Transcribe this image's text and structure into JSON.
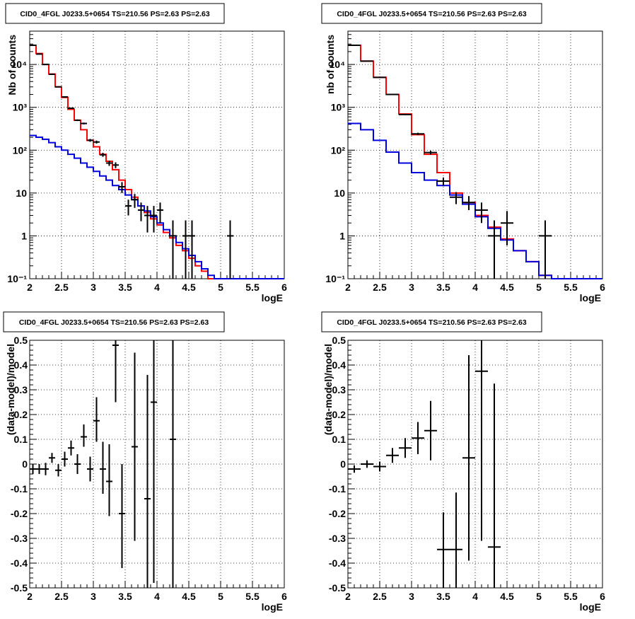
{
  "chart_data": [
    {
      "type": "line",
      "title": "CID0_4FGL J0233.5+0654 TS=210.56 PS=2.63 PS=2.63",
      "xlabel": "logE",
      "ylabel": "Nb of counts",
      "xlim": [
        2,
        6
      ],
      "ylim": [
        0.1,
        60000
      ],
      "log_y": true,
      "grid": true,
      "x_ticks": [
        "2",
        "2.5",
        "3",
        "3.5",
        "4",
        "4.5",
        "5",
        "5.5",
        "6"
      ],
      "y_ticks": [
        "10⁻¹",
        "1",
        "10",
        "10²",
        "10³",
        "10⁴"
      ],
      "bin_edges": [
        2.0,
        2.1,
        2.2,
        2.3,
        2.4,
        2.5,
        2.6,
        2.7,
        2.8,
        2.9,
        3.0,
        3.1,
        3.2,
        3.3,
        3.4,
        3.5,
        3.6,
        3.7,
        3.8,
        3.9,
        4.0,
        4.1,
        4.2,
        4.3,
        4.4,
        4.5,
        4.6,
        4.7,
        4.8,
        4.9,
        5.0,
        5.1,
        5.2,
        5.3,
        5.4,
        5.5,
        5.6,
        5.7,
        5.8,
        5.9,
        6.0
      ],
      "series": [
        {
          "color": "#ff0000",
          "style": "step",
          "values": [
            28000,
            18000,
            10000,
            6000,
            3000,
            1700,
            900,
            500,
            300,
            170,
            120,
            80,
            55,
            35,
            20,
            12,
            8,
            5,
            3.5,
            2.5,
            1.8,
            1.2,
            0.9,
            0.6,
            0.45,
            0.3,
            0.2,
            0.15,
            0.1,
            0.1,
            0.1,
            0.1,
            0.1,
            0.1,
            0.1,
            0.1,
            0.1,
            0.1,
            0.1,
            0.1
          ]
        },
        {
          "color": "#0000dd",
          "style": "step",
          "values": [
            220,
            200,
            180,
            150,
            120,
            100,
            80,
            65,
            50,
            40,
            32,
            25,
            20,
            15,
            12,
            9,
            7,
            5,
            3.8,
            2.8,
            2.0,
            1.4,
            1.0,
            0.7,
            0.5,
            0.35,
            0.25,
            0.17,
            0.12,
            0.1,
            0.1,
            0.1,
            0.1,
            0.1,
            0.1,
            0.1,
            0.1,
            0.1,
            0.1,
            0.1
          ]
        },
        {
          "color": "#000000",
          "style": "errorbar",
          "points": [
            {
              "x": 2.05,
              "y": 28000,
              "xerr": 0.05,
              "lo": 27800,
              "hi": 28200
            },
            {
              "x": 2.15,
              "y": 17500,
              "xerr": 0.05,
              "lo": 17300,
              "hi": 17700
            },
            {
              "x": 2.25,
              "y": 10000,
              "xerr": 0.05,
              "lo": 9900,
              "hi": 10100
            },
            {
              "x": 2.35,
              "y": 5900,
              "xerr": 0.05,
              "lo": 5820,
              "hi": 5980
            },
            {
              "x": 2.45,
              "y": 3000,
              "xerr": 0.05,
              "lo": 2950,
              "hi": 3050
            },
            {
              "x": 2.55,
              "y": 1750,
              "xerr": 0.05,
              "lo": 1710,
              "hi": 1790
            },
            {
              "x": 2.65,
              "y": 950,
              "xerr": 0.05,
              "lo": 920,
              "hi": 980
            },
            {
              "x": 2.75,
              "y": 500,
              "xerr": 0.05,
              "lo": 478,
              "hi": 522
            },
            {
              "x": 2.85,
              "y": 420,
              "xerr": 0.05,
              "lo": 400,
              "hi": 440
            },
            {
              "x": 2.95,
              "y": 170,
              "xerr": 0.05,
              "lo": 157,
              "hi": 183
            },
            {
              "x": 3.05,
              "y": 155,
              "xerr": 0.05,
              "lo": 143,
              "hi": 167
            },
            {
              "x": 3.15,
              "y": 78,
              "xerr": 0.05,
              "lo": 70,
              "hi": 87
            },
            {
              "x": 3.25,
              "y": 50,
              "xerr": 0.05,
              "lo": 43,
              "hi": 57
            },
            {
              "x": 3.35,
              "y": 45,
              "xerr": 0.05,
              "lo": 38,
              "hi": 52
            },
            {
              "x": 3.45,
              "y": 14,
              "xerr": 0.05,
              "lo": 10,
              "hi": 18
            },
            {
              "x": 3.55,
              "y": 5,
              "xerr": 0.05,
              "lo": 3,
              "hi": 7
            },
            {
              "x": 3.65,
              "y": 7,
              "xerr": 0.05,
              "lo": 4.5,
              "hi": 9.5
            },
            {
              "x": 3.75,
              "y": 4,
              "xerr": 0.05,
              "lo": 2.2,
              "hi": 6
            },
            {
              "x": 3.85,
              "y": 3,
              "xerr": 0.05,
              "lo": 1.2,
              "hi": 5
            },
            {
              "x": 3.95,
              "y": 3,
              "xerr": 0.05,
              "lo": 1.2,
              "hi": 5
            },
            {
              "x": 4.05,
              "y": 4,
              "xerr": 0.05,
              "lo": 2,
              "hi": 6
            },
            {
              "x": 4.25,
              "y": 1,
              "xerr": 0.05,
              "lo": 0.1,
              "hi": 2.3
            },
            {
              "x": 4.45,
              "y": 1,
              "xerr": 0.05,
              "lo": 0.1,
              "hi": 2.3
            },
            {
              "x": 4.55,
              "y": 1,
              "xerr": 0.05,
              "lo": 0.1,
              "hi": 2.3
            },
            {
              "x": 5.15,
              "y": 1,
              "xerr": 0.05,
              "lo": 0.1,
              "hi": 2.3
            }
          ]
        }
      ]
    },
    {
      "type": "line",
      "title": "CID0_4FGL J0233.5+0654 TS=210.56 PS=2.63 PS=2.63",
      "xlabel": "logE",
      "ylabel": "nb of counts",
      "xlim": [
        2,
        6
      ],
      "ylim": [
        0.1,
        60000
      ],
      "log_y": true,
      "grid": true,
      "x_ticks": [
        "2",
        "2.5",
        "3",
        "3.5",
        "4",
        "4.5",
        "5",
        "5.5",
        "6"
      ],
      "y_ticks": [
        "10⁻¹",
        "1",
        "10",
        "10²",
        "10³",
        "10⁴"
      ],
      "bin_edges": [
        2.0,
        2.2,
        2.4,
        2.6,
        2.8,
        3.0,
        3.2,
        3.4,
        3.6,
        3.8,
        4.0,
        4.2,
        4.4,
        4.6,
        4.8,
        5.0,
        5.2,
        5.4,
        5.6,
        5.8,
        6.0
      ],
      "series": [
        {
          "color": "#ff0000",
          "style": "step",
          "values": [
            28000,
            12000,
            5000,
            2000,
            700,
            230,
            80,
            30,
            10,
            6,
            3,
            1.6,
            0.85,
            0.45,
            0.25,
            0.12,
            0.1,
            0.1,
            0.1,
            0.1
          ]
        },
        {
          "color": "#0000dd",
          "style": "step",
          "values": [
            420,
            300,
            170,
            90,
            50,
            30,
            20,
            15,
            9,
            5.5,
            2.8,
            1.5,
            0.8,
            0.45,
            0.25,
            0.12,
            0.1,
            0.1,
            0.1,
            0.1
          ]
        },
        {
          "color": "#000000",
          "style": "errorbar",
          "points": [
            {
              "x": 2.1,
              "y": 28000,
              "xerr": 0.1,
              "lo": 27800,
              "hi": 28200
            },
            {
              "x": 2.3,
              "y": 12000,
              "xerr": 0.1,
              "lo": 11850,
              "hi": 12150
            },
            {
              "x": 2.5,
              "y": 5000,
              "xerr": 0.1,
              "lo": 4900,
              "hi": 5100
            },
            {
              "x": 2.7,
              "y": 2000,
              "xerr": 0.1,
              "lo": 1950,
              "hi": 2050
            },
            {
              "x": 2.9,
              "y": 680,
              "xerr": 0.1,
              "lo": 655,
              "hi": 705
            },
            {
              "x": 3.1,
              "y": 240,
              "xerr": 0.1,
              "lo": 225,
              "hi": 255
            },
            {
              "x": 3.3,
              "y": 88,
              "xerr": 0.1,
              "lo": 79,
              "hi": 97
            },
            {
              "x": 3.5,
              "y": 19,
              "xerr": 0.1,
              "lo": 15,
              "hi": 23
            },
            {
              "x": 3.7,
              "y": 8,
              "xerr": 0.1,
              "lo": 5.5,
              "hi": 10.5
            },
            {
              "x": 3.9,
              "y": 6,
              "xerr": 0.1,
              "lo": 4,
              "hi": 8.5
            },
            {
              "x": 4.1,
              "y": 4,
              "xerr": 0.1,
              "lo": 2,
              "hi": 6
            },
            {
              "x": 4.3,
              "y": 1,
              "xerr": 0.1,
              "lo": 0.1,
              "hi": 2.3
            },
            {
              "x": 4.5,
              "y": 2,
              "xerr": 0.1,
              "lo": 0.6,
              "hi": 3.8
            },
            {
              "x": 5.1,
              "y": 1,
              "xerr": 0.1,
              "lo": 0.1,
              "hi": 2.3
            }
          ]
        }
      ]
    },
    {
      "type": "scatter",
      "title": "CID0_4FGL J0233.5+0654 TS=210.56 PS=2.63 PS=2.63",
      "xlabel": "logE",
      "ylabel": "(data-model)/model",
      "xlim": [
        2,
        6
      ],
      "ylim": [
        -0.5,
        0.5
      ],
      "grid": true,
      "x_ticks": [
        "2",
        "2.5",
        "3",
        "3.5",
        "4",
        "4.5",
        "5",
        "5.5",
        "6"
      ],
      "y_ticks": [
        "-0.5",
        "-0.4",
        "-0.3",
        "-0.2",
        "-0.1",
        "0",
        "0.1",
        "0.2",
        "0.3",
        "0.4",
        "0.5"
      ],
      "series": [
        {
          "color": "#000000",
          "style": "errorbar",
          "points": [
            {
              "x": 2.05,
              "y": -0.02,
              "xerr": 0.05,
              "lo": -0.04,
              "hi": 0.0
            },
            {
              "x": 2.15,
              "y": -0.02,
              "xerr": 0.05,
              "lo": -0.04,
              "hi": 0.0
            },
            {
              "x": 2.25,
              "y": -0.02,
              "xerr": 0.05,
              "lo": -0.045,
              "hi": 0.005
            },
            {
              "x": 2.35,
              "y": 0.025,
              "xerr": 0.05,
              "lo": 0.005,
              "hi": 0.045
            },
            {
              "x": 2.45,
              "y": -0.025,
              "xerr": 0.05,
              "lo": -0.05,
              "hi": 0.0
            },
            {
              "x": 2.55,
              "y": 0.02,
              "xerr": 0.05,
              "lo": -0.01,
              "hi": 0.05
            },
            {
              "x": 2.65,
              "y": 0.065,
              "xerr": 0.05,
              "lo": 0.035,
              "hi": 0.095
            },
            {
              "x": 2.75,
              "y": 0.0,
              "xerr": 0.05,
              "lo": -0.04,
              "hi": 0.04
            },
            {
              "x": 2.85,
              "y": 0.11,
              "xerr": 0.05,
              "lo": 0.07,
              "hi": 0.16
            },
            {
              "x": 2.95,
              "y": -0.02,
              "xerr": 0.05,
              "lo": -0.07,
              "hi": 0.03
            },
            {
              "x": 3.05,
              "y": 0.175,
              "xerr": 0.05,
              "lo": 0.09,
              "hi": 0.27
            },
            {
              "x": 3.15,
              "y": -0.02,
              "xerr": 0.05,
              "lo": -0.12,
              "hi": 0.09
            },
            {
              "x": 3.25,
              "y": -0.07,
              "xerr": 0.05,
              "lo": -0.21,
              "hi": 0.08
            },
            {
              "x": 3.35,
              "y": 0.48,
              "xerr": 0.05,
              "lo": 0.25,
              "hi": 0.5
            },
            {
              "x": 3.45,
              "y": -0.2,
              "xerr": 0.05,
              "lo": -0.42,
              "hi": 0.0
            },
            {
              "x": 3.65,
              "y": 0.07,
              "xerr": 0.05,
              "lo": -0.31,
              "hi": 0.45
            },
            {
              "x": 3.85,
              "y": -0.14,
              "xerr": 0.05,
              "lo": -0.5,
              "hi": 0.36
            },
            {
              "x": 3.95,
              "y": 0.25,
              "xerr": 0.05,
              "lo": -0.48,
              "hi": 0.5
            },
            {
              "x": 4.25,
              "y": 0.1,
              "xerr": 0.05,
              "lo": -0.5,
              "hi": 0.5
            }
          ]
        }
      ]
    },
    {
      "type": "scatter",
      "title": "CID0_4FGL J0233.5+0654 TS=210.56 PS=2.63 PS=2.63",
      "xlabel": "logE",
      "ylabel": "(data-model)/model",
      "xlim": [
        2,
        6
      ],
      "ylim": [
        -0.5,
        0.5
      ],
      "grid": true,
      "x_ticks": [
        "2",
        "2.5",
        "3",
        "3.5",
        "4",
        "4.5",
        "5",
        "5.5",
        "6"
      ],
      "y_ticks": [
        "-0.5",
        "-0.4",
        "-0.3",
        "-0.2",
        "-0.1",
        "0",
        "0.1",
        "0.2",
        "0.3",
        "0.4",
        "0.5"
      ],
      "series": [
        {
          "color": "#000000",
          "style": "errorbar",
          "points": [
            {
              "x": 2.1,
              "y": -0.02,
              "xerr": 0.1,
              "lo": -0.035,
              "hi": -0.005
            },
            {
              "x": 2.3,
              "y": 0.0,
              "xerr": 0.1,
              "lo": -0.015,
              "hi": 0.015
            },
            {
              "x": 2.5,
              "y": -0.01,
              "xerr": 0.1,
              "lo": -0.03,
              "hi": 0.01
            },
            {
              "x": 2.7,
              "y": 0.035,
              "xerr": 0.1,
              "lo": 0.005,
              "hi": 0.065
            },
            {
              "x": 2.9,
              "y": 0.065,
              "xerr": 0.1,
              "lo": 0.025,
              "hi": 0.105
            },
            {
              "x": 3.1,
              "y": 0.105,
              "xerr": 0.1,
              "lo": 0.04,
              "hi": 0.17
            },
            {
              "x": 3.3,
              "y": 0.135,
              "xerr": 0.1,
              "lo": 0.015,
              "hi": 0.255
            },
            {
              "x": 3.5,
              "y": -0.345,
              "xerr": 0.1,
              "lo": -0.5,
              "hi": -0.195
            },
            {
              "x": 3.7,
              "y": -0.345,
              "xerr": 0.1,
              "lo": -0.5,
              "hi": -0.115
            },
            {
              "x": 3.9,
              "y": 0.025,
              "xerr": 0.1,
              "lo": -0.39,
              "hi": 0.44
            },
            {
              "x": 4.1,
              "y": 0.375,
              "xerr": 0.1,
              "lo": -0.31,
              "hi": 0.5
            },
            {
              "x": 4.3,
              "y": -0.335,
              "xerr": 0.1,
              "lo": -0.5,
              "hi": 0.325
            }
          ]
        }
      ]
    }
  ]
}
